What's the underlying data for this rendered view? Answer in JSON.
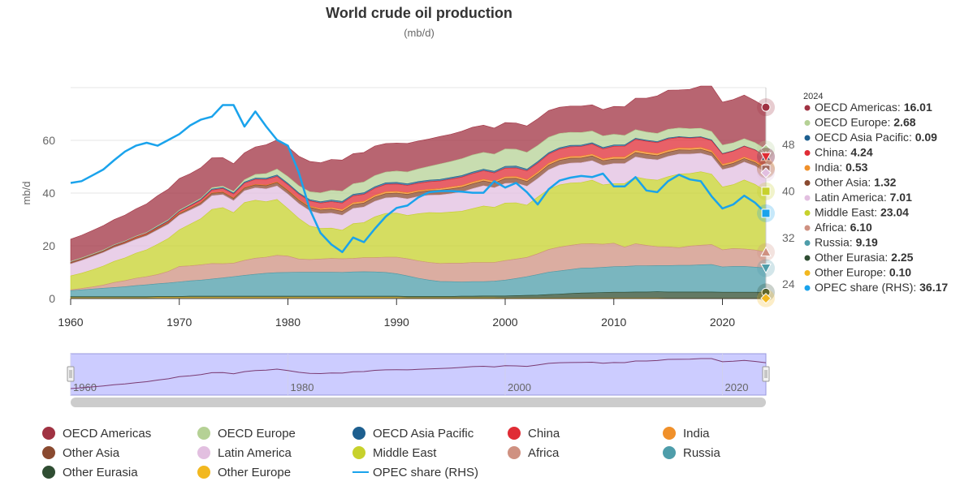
{
  "chart_data": {
    "type": "area",
    "title": "World crude oil production",
    "subtitle": "(mb/d)",
    "ylabel": "mb/d",
    "ylim": [
      0,
      80
    ],
    "y_ticks": [
      "0",
      "20",
      "40",
      "60"
    ],
    "y_right_ticks": [
      "24",
      "32",
      "40",
      "48"
    ],
    "y_right_lim": [
      21.5,
      57.8
    ],
    "x": [
      1960,
      1961,
      1962,
      1963,
      1964,
      1965,
      1966,
      1967,
      1968,
      1969,
      1970,
      1971,
      1972,
      1973,
      1974,
      1975,
      1976,
      1977,
      1978,
      1979,
      1980,
      1981,
      1982,
      1983,
      1984,
      1985,
      1986,
      1987,
      1988,
      1989,
      1990,
      1991,
      1992,
      1993,
      1994,
      1995,
      1996,
      1997,
      1998,
      1999,
      2000,
      2001,
      2002,
      2003,
      2004,
      2005,
      2006,
      2007,
      2008,
      2009,
      2010,
      2011,
      2012,
      2013,
      2014,
      2015,
      2016,
      2017,
      2018,
      2019,
      2020,
      2021,
      2022,
      2023,
      2024
    ],
    "x_ticks": [
      "1960",
      "1970",
      "1980",
      "1990",
      "2000",
      "2010",
      "2020"
    ],
    "x_lim": [
      1960,
      2024
    ],
    "tooltip_year": "2024",
    "series": [
      {
        "name": "OECD Americas",
        "color": "#a03242",
        "last_value": "16.01",
        "values": [
          8.4,
          8.6,
          8.9,
          9.2,
          9.5,
          9.8,
          10.3,
          10.8,
          11.4,
          11.6,
          12,
          11.6,
          11.6,
          11.3,
          10.8,
          10.5,
          10.2,
          10.4,
          10.9,
          11,
          11.3,
          11.2,
          11.5,
          11.4,
          11.7,
          11.8,
          11.4,
          11.2,
          11.2,
          10.8,
          10.6,
          10.8,
          10.6,
          10.4,
          10.4,
          10.3,
          10.4,
          10.5,
          10.3,
          9.9,
          10,
          9.9,
          10,
          10.1,
          10.1,
          9.9,
          9.9,
          10,
          9.9,
          10,
          10.5,
          10.9,
          11.9,
          12.8,
          14.2,
          14.8,
          14.4,
          14.9,
          16,
          17.2,
          16.3,
          16.4,
          16.5,
          15.9,
          16.01
        ]
      },
      {
        "name": "OECD Europe",
        "color": "#b5d195",
        "last_value": "2.68",
        "values": [
          0.3,
          0.3,
          0.3,
          0.3,
          0.3,
          0.3,
          0.3,
          0.3,
          0.4,
          0.4,
          0.4,
          0.4,
          0.4,
          0.5,
          0.5,
          0.6,
          0.9,
          1.4,
          1.8,
          2.3,
          2.6,
          2.7,
          3,
          3.4,
          3.7,
          3.9,
          4,
          4.1,
          4.2,
          4.1,
          4.3,
          4.5,
          4.8,
          5.2,
          5.9,
          6.1,
          6.4,
          6.5,
          6.4,
          6.5,
          6.6,
          6.4,
          6.4,
          6.1,
          5.9,
          5.5,
          5,
          4.8,
          4.5,
          4.4,
          4.1,
          3.6,
          3.3,
          3.1,
          3.1,
          3.3,
          3.3,
          3.3,
          3.2,
          3.2,
          3.2,
          3,
          2.8,
          2.7,
          2.68
        ]
      },
      {
        "name": "OECD Asia Pacific",
        "color": "#1d5f8f",
        "last_value": "0.09",
        "values": [
          0.1,
          0.1,
          0.1,
          0.1,
          0.1,
          0.1,
          0.1,
          0.1,
          0.2,
          0.2,
          0.2,
          0.2,
          0.3,
          0.4,
          0.4,
          0.4,
          0.4,
          0.5,
          0.5,
          0.5,
          0.5,
          0.5,
          0.5,
          0.5,
          0.6,
          0.6,
          0.6,
          0.6,
          0.6,
          0.6,
          0.6,
          0.6,
          0.6,
          0.6,
          0.6,
          0.6,
          0.6,
          0.6,
          0.6,
          0.6,
          0.7,
          0.7,
          0.6,
          0.6,
          0.5,
          0.5,
          0.5,
          0.5,
          0.5,
          0.5,
          0.5,
          0.5,
          0.4,
          0.4,
          0.4,
          0.4,
          0.3,
          0.3,
          0.3,
          0.3,
          0.2,
          0.2,
          0.1,
          0.1,
          0.09
        ]
      },
      {
        "name": "China",
        "color": "#e02c35",
        "last_value": "4.24",
        "values": [
          0.1,
          0.1,
          0.1,
          0.1,
          0.2,
          0.2,
          0.3,
          0.3,
          0.3,
          0.4,
          0.6,
          0.8,
          0.9,
          1.1,
          1.3,
          1.5,
          1.7,
          1.9,
          2.1,
          2.1,
          2.1,
          2,
          2,
          2.1,
          2.3,
          2.5,
          2.6,
          2.7,
          2.7,
          2.8,
          2.8,
          2.8,
          2.8,
          2.9,
          2.9,
          3,
          3.2,
          3.2,
          3.2,
          3.2,
          3.3,
          3.3,
          3.4,
          3.4,
          3.5,
          3.6,
          3.7,
          3.7,
          3.8,
          3.8,
          4.1,
          4.1,
          4.2,
          4.2,
          4.2,
          4.3,
          4,
          3.8,
          3.8,
          3.8,
          3.9,
          4,
          4.1,
          4.2,
          4.24
        ]
      },
      {
        "name": "India",
        "color": "#f0902a",
        "last_value": "0.53",
        "values": [
          0.01,
          0.01,
          0.02,
          0.03,
          0.04,
          0.06,
          0.09,
          0.11,
          0.12,
          0.13,
          0.14,
          0.14,
          0.15,
          0.15,
          0.15,
          0.17,
          0.17,
          0.2,
          0.23,
          0.25,
          0.18,
          0.3,
          0.43,
          0.5,
          0.57,
          0.63,
          0.64,
          0.62,
          0.64,
          0.7,
          0.66,
          0.62,
          0.56,
          0.53,
          0.58,
          0.7,
          0.65,
          0.68,
          0.66,
          0.66,
          0.65,
          0.64,
          0.66,
          0.66,
          0.68,
          0.66,
          0.68,
          0.69,
          0.68,
          0.68,
          0.75,
          0.77,
          0.76,
          0.76,
          0.75,
          0.73,
          0.72,
          0.72,
          0.7,
          0.67,
          0.6,
          0.57,
          0.56,
          0.55,
          0.53
        ]
      },
      {
        "name": "Other Asia",
        "color": "#8a4a30",
        "last_value": "1.32",
        "values": [
          0.5,
          0.5,
          0.5,
          0.5,
          0.5,
          0.5,
          0.5,
          0.5,
          0.6,
          0.6,
          0.6,
          0.7,
          0.8,
          0.9,
          0.9,
          0.9,
          1,
          1.1,
          1.2,
          1.3,
          1.3,
          1.3,
          1.3,
          1.4,
          1.5,
          1.5,
          1.5,
          1.5,
          1.6,
          1.6,
          1.6,
          1.7,
          1.7,
          1.7,
          1.8,
          1.8,
          1.8,
          1.8,
          1.8,
          1.8,
          1.8,
          1.8,
          1.8,
          1.8,
          1.8,
          1.8,
          1.8,
          1.8,
          1.8,
          1.8,
          1.7,
          1.7,
          1.7,
          1.7,
          1.6,
          1.6,
          1.6,
          1.5,
          1.5,
          1.4,
          1.4,
          1.4,
          1.3,
          1.3,
          1.32
        ]
      },
      {
        "name": "Latin America",
        "color": "#e2bfe0",
        "last_value": "7.01",
        "values": [
          4.5,
          4.8,
          5,
          5.1,
          5.2,
          5.3,
          5.2,
          5.3,
          5.4,
          5.4,
          5.5,
          5.3,
          5.2,
          5.2,
          4.9,
          4.5,
          4.5,
          4.7,
          4.9,
          5.1,
          5.5,
          5.6,
          5.8,
          5.6,
          5.7,
          5.7,
          5.8,
          5.9,
          5.9,
          5.9,
          6,
          6.3,
          6.5,
          6.6,
          6.8,
          7,
          7.3,
          7.6,
          7.7,
          7.4,
          7.5,
          7.5,
          7.2,
          7,
          7.4,
          7.5,
          7.6,
          7.5,
          7.4,
          7.4,
          7.6,
          7.6,
          7.6,
          7.7,
          7.7,
          7.7,
          7.6,
          7.4,
          7,
          6.8,
          6.6,
          6.7,
          6.8,
          7,
          7.01
        ]
      },
      {
        "name": "Middle East",
        "color": "#c7d12c",
        "last_value": "23.04",
        "values": [
          5.3,
          5.8,
          6.5,
          7.2,
          8,
          8.6,
          9.5,
          10.2,
          11.5,
          12.5,
          13.9,
          15.8,
          17.5,
          20.5,
          21.3,
          19.2,
          21.9,
          22,
          21,
          21.2,
          18,
          15.4,
          12.7,
          11.6,
          11.5,
          10.8,
          13.2,
          13.3,
          15.5,
          16.6,
          16.7,
          16.4,
          17.9,
          18.9,
          19.2,
          19.4,
          19.7,
          20.4,
          21.4,
          20.9,
          21.8,
          21.3,
          19.8,
          21.5,
          22.8,
          23.6,
          23.6,
          23.3,
          24.1,
          22.5,
          22.6,
          24.1,
          25.3,
          25.1,
          25.2,
          26.6,
          27.9,
          27.5,
          27.9,
          26.7,
          23.8,
          24.2,
          26.2,
          24.9,
          23.04
        ]
      },
      {
        "name": "Africa",
        "color": "#cf9181",
        "last_value": "6.10",
        "values": [
          0.3,
          0.5,
          0.8,
          1.2,
          1.9,
          2.3,
          2.8,
          3.1,
          3.5,
          4.4,
          5.9,
          5.7,
          5.8,
          5.9,
          5.4,
          5.1,
          5.7,
          6.1,
          6.1,
          6.6,
          6.2,
          5,
          4.8,
          5,
          5.2,
          5.2,
          5.1,
          5.3,
          5.4,
          5.8,
          6.3,
          6.5,
          6.6,
          6.7,
          6.8,
          7,
          7.1,
          7.3,
          7.3,
          7.1,
          7.4,
          7.4,
          7.3,
          7.9,
          8.6,
          9,
          9.2,
          9.2,
          9.2,
          8.8,
          8.9,
          7.3,
          8.4,
          7.8,
          7.2,
          7.1,
          6.7,
          7.3,
          7.4,
          7.6,
          6.5,
          6.8,
          6.6,
          6.5,
          6.1
        ]
      },
      {
        "name": "Russia",
        "color": "#4e9daa",
        "last_value": "9.19",
        "values": [
          2.3,
          2.6,
          2.9,
          3.2,
          3.5,
          3.8,
          4.2,
          4.5,
          4.8,
          5.1,
          5.5,
          5.8,
          6.1,
          6.5,
          6.9,
          7.4,
          7.9,
          8.3,
          8.7,
          8.9,
          9,
          9.1,
          9.1,
          9.1,
          9.1,
          9,
          9.2,
          9.3,
          9.2,
          9,
          8.5,
          7.8,
          6.9,
          6.2,
          5.7,
          5.6,
          5.4,
          5.5,
          5.4,
          5.6,
          6,
          6.5,
          7.1,
          7.8,
          8.5,
          8.8,
          9.1,
          9.4,
          9.4,
          9.5,
          9.7,
          9.8,
          9.9,
          9.9,
          9.9,
          10,
          10.1,
          10.1,
          10.3,
          10.4,
          9.6,
          9.8,
          9.8,
          9.5,
          9.19
        ]
      },
      {
        "name": "Other Eurasia",
        "color": "#2f4d32",
        "last_value": "2.25",
        "values": [
          0.4,
          0.4,
          0.4,
          0.4,
          0.4,
          0.4,
          0.4,
          0.4,
          0.4,
          0.4,
          0.4,
          0.5,
          0.5,
          0.5,
          0.5,
          0.5,
          0.5,
          0.5,
          0.5,
          0.5,
          0.5,
          0.5,
          0.5,
          0.5,
          0.5,
          0.5,
          0.5,
          0.5,
          0.5,
          0.5,
          0.5,
          0.5,
          0.5,
          0.5,
          0.5,
          0.5,
          0.6,
          0.6,
          0.7,
          0.7,
          0.8,
          0.9,
          1,
          1.1,
          1.3,
          1.5,
          1.7,
          1.9,
          2,
          2.1,
          2.2,
          2.2,
          2.3,
          2.3,
          2.4,
          2.4,
          2.4,
          2.4,
          2.4,
          2.4,
          2.3,
          2.3,
          2.3,
          2.3,
          2.25
        ]
      },
      {
        "name": "Other Europe",
        "color": "#f2b81f",
        "last_value": "0.10",
        "values": [
          0.3,
          0.3,
          0.3,
          0.3,
          0.3,
          0.3,
          0.3,
          0.3,
          0.4,
          0.4,
          0.4,
          0.4,
          0.4,
          0.4,
          0.4,
          0.4,
          0.4,
          0.4,
          0.4,
          0.4,
          0.4,
          0.4,
          0.4,
          0.4,
          0.4,
          0.4,
          0.4,
          0.4,
          0.4,
          0.4,
          0.4,
          0.3,
          0.3,
          0.3,
          0.3,
          0.3,
          0.3,
          0.3,
          0.3,
          0.3,
          0.2,
          0.2,
          0.2,
          0.2,
          0.2,
          0.2,
          0.2,
          0.2,
          0.2,
          0.2,
          0.2,
          0.2,
          0.2,
          0.2,
          0.2,
          0.1,
          0.1,
          0.1,
          0.1,
          0.1,
          0.1,
          0.1,
          0.1,
          0.1,
          0.1
        ]
      }
    ],
    "line_series": {
      "name": "OPEC share (RHS)",
      "color": "#1aa3ec",
      "last_value": "36.17",
      "axis": "right",
      "values": [
        41.4,
        41.7,
        42.7,
        43.7,
        45.3,
        46.8,
        47.8,
        48.3,
        47.8,
        48.8,
        49.8,
        51.3,
        52.3,
        52.8,
        54.8,
        54.8,
        51.1,
        53.7,
        51.1,
        48.8,
        47.8,
        43.2,
        36.9,
        32.8,
        30.8,
        29.5,
        32.0,
        31.2,
        33.5,
        35.6,
        37.1,
        37.5,
        38.9,
        39.8,
        40.0,
        40.0,
        39.9,
        39.7,
        39.7,
        41.7,
        40.6,
        41.4,
        39.8,
        37.7,
        40.3,
        41.8,
        42.3,
        42.6,
        42.4,
        43.0,
        40.8,
        40.8,
        42.4,
        40.1,
        39.8,
        41.7,
        42.8,
        42.0,
        41.7,
        39.1,
        37.0,
        37.7,
        39.2,
        38.0,
        36.17
      ]
    },
    "legend": {
      "placement": "bottom"
    },
    "navigator_ticks": [
      "1960",
      "1980",
      "2000",
      "2020"
    ]
  }
}
